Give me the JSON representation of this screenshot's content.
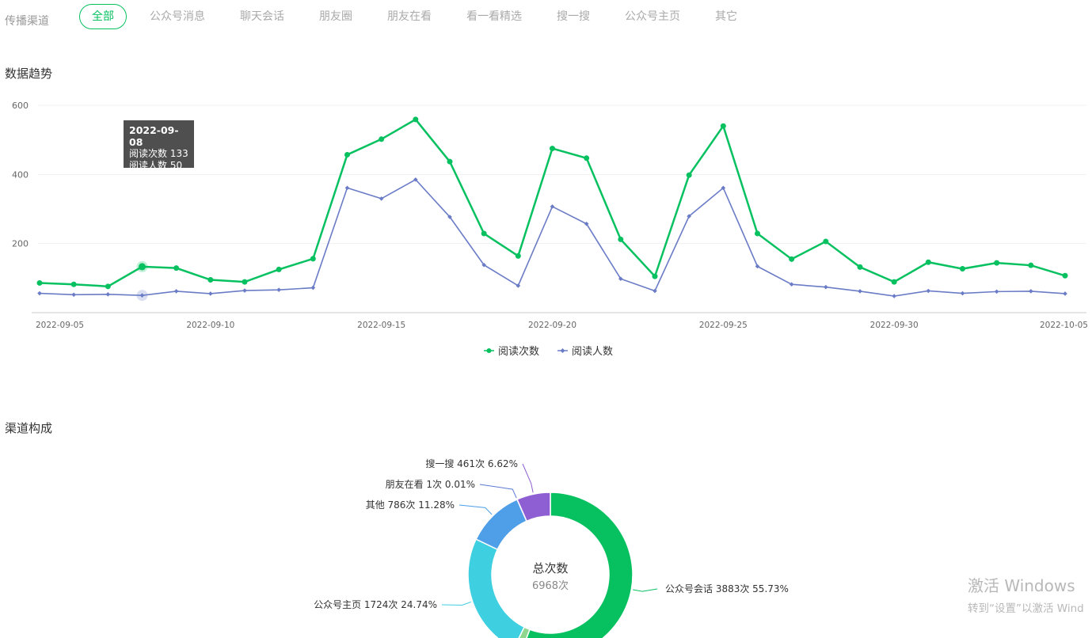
{
  "filter": {
    "label": "传播渠道",
    "tabs": [
      "全部",
      "公众号消息",
      "聊天会话",
      "朋友圈",
      "朋友在看",
      "看一看精选",
      "搜一搜",
      "公众号主页",
      "其它"
    ],
    "active_index": 0
  },
  "sections": {
    "trend_title": "数据趋势",
    "channel_title": "渠道构成"
  },
  "tooltip": {
    "date": "2022-09-08",
    "line1": "阅读次数 133",
    "line2": "阅读人数 50"
  },
  "colors": {
    "green": "#07c160",
    "purple": "#6b7cc6",
    "accent": "#07c160"
  },
  "chart_data": [
    {
      "type": "line",
      "x": [
        "2022-09-05",
        "2022-09-06",
        "2022-09-07",
        "2022-09-08",
        "2022-09-09",
        "2022-09-10",
        "2022-09-11",
        "2022-09-12",
        "2022-09-13",
        "2022-09-14",
        "2022-09-15",
        "2022-09-16",
        "2022-09-17",
        "2022-09-18",
        "2022-09-19",
        "2022-09-20",
        "2022-09-21",
        "2022-09-22",
        "2022-09-23",
        "2022-09-24",
        "2022-09-25",
        "2022-09-26",
        "2022-09-27",
        "2022-09-28",
        "2022-09-29",
        "2022-09-30",
        "2022-10-01",
        "2022-10-02",
        "2022-10-03",
        "2022-10-04",
        "2022-10-05"
      ],
      "xtick_labels": [
        "2022-09-05",
        "2022-09-10",
        "2022-09-15",
        "2022-09-20",
        "2022-09-25",
        "2022-09-30",
        "2022-10-05"
      ],
      "ylim": [
        0,
        600
      ],
      "yticks": [
        200,
        400,
        600
      ],
      "grid": true,
      "legend": "bottom-center",
      "series": [
        {
          "name": "阅读次数",
          "color": "#07c160",
          "values": [
            86,
            82,
            76,
            133,
            129,
            95,
            89,
            125,
            156,
            457,
            502,
            559,
            437,
            229,
            164,
            475,
            447,
            212,
            105,
            398,
            540,
            229,
            155,
            206,
            132,
            89,
            146,
            127,
            144,
            137,
            107
          ]
        },
        {
          "name": "阅读人数",
          "color": "#6b7cc6",
          "values": [
            56,
            52,
            53,
            50,
            62,
            55,
            64,
            66,
            72,
            361,
            330,
            385,
            277,
            138,
            78,
            307,
            257,
            98,
            63,
            279,
            361,
            134,
            82,
            74,
            62,
            48,
            63,
            56,
            61,
            62,
            55
          ]
        }
      ]
    },
    {
      "type": "pie",
      "donut": true,
      "center_title": "总次数",
      "center_value": "6968次",
      "slices": [
        {
          "name": "公众号会话",
          "value": 3883,
          "label": "公众号会话 3883次 55.73%",
          "color": "#07c160"
        },
        {
          "name": "朋友圈",
          "value": 113,
          "label": "",
          "color": "#8fd68f"
        },
        {
          "name": "公众号主页",
          "value": 1724,
          "label": "公众号主页 1724次 24.74%",
          "color": "#3ecfe0"
        },
        {
          "name": "其他",
          "value": 786,
          "label": "其他 786次 11.28%",
          "color": "#4e9ee8"
        },
        {
          "name": "朋友在看",
          "value": 1,
          "label": "朋友在看 1次 0.01%",
          "color": "#5b79d4"
        },
        {
          "name": "搜一搜",
          "value": 461,
          "label": "搜一搜 461次 6.62%",
          "color": "#8e5fd3"
        }
      ]
    }
  ],
  "watermark": {
    "line1": "激活 Windows",
    "line2": "转到“设置”以激活 Wind"
  }
}
